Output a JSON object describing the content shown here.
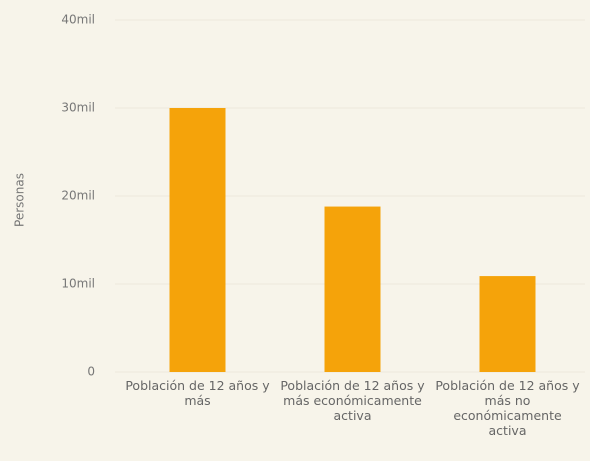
{
  "chart_data": {
    "type": "bar",
    "y_label": "Personas",
    "categories": [
      "Población de 12 años y más",
      "Población de 12 años y más económicamente activa",
      "Población de 12 años y más no económicamente activa"
    ],
    "values": [
      30000,
      18800,
      10900
    ],
    "color": "#f5a30a",
    "ylim": [
      0,
      40000
    ],
    "yticks": [
      0,
      {
        "value": 10000,
        "label": "10mil"
      },
      {
        "value": 20000,
        "label": "20mil"
      },
      {
        "value": 30000,
        "label": "30mil"
      },
      {
        "value": 40000,
        "label": "40mil"
      }
    ],
    "grid": true
  }
}
